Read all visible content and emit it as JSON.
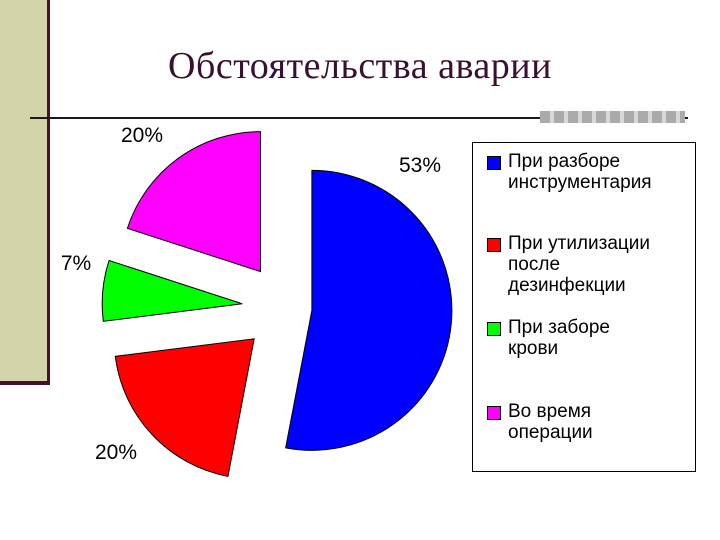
{
  "chart_data": {
    "type": "pie",
    "title": "Обстоятельства аварии",
    "labels": [
      "При разборе инструментария",
      "При утилизации после дезинфекции",
      "При заборе крови",
      "Во время операции"
    ],
    "values": [
      53,
      20,
      7,
      20
    ],
    "data_labels": [
      "53%",
      "20%",
      "7%",
      "20%"
    ],
    "colors": [
      "#0000ff",
      "#ff0000",
      "#00ff00",
      "#ff00ff"
    ],
    "legend": {
      "position": "right",
      "items": [
        {
          "label": "При разборе\nинструментария",
          "color": "#0000ff"
        },
        {
          "label": "При утилизации\nпосле\nдезинфекции",
          "color": "#ff0000"
        },
        {
          "label": "При заборе\nкрови",
          "color": "#00ff00"
        },
        {
          "label": "Во время\nоперации",
          "color": "#ff00ff"
        }
      ]
    }
  }
}
